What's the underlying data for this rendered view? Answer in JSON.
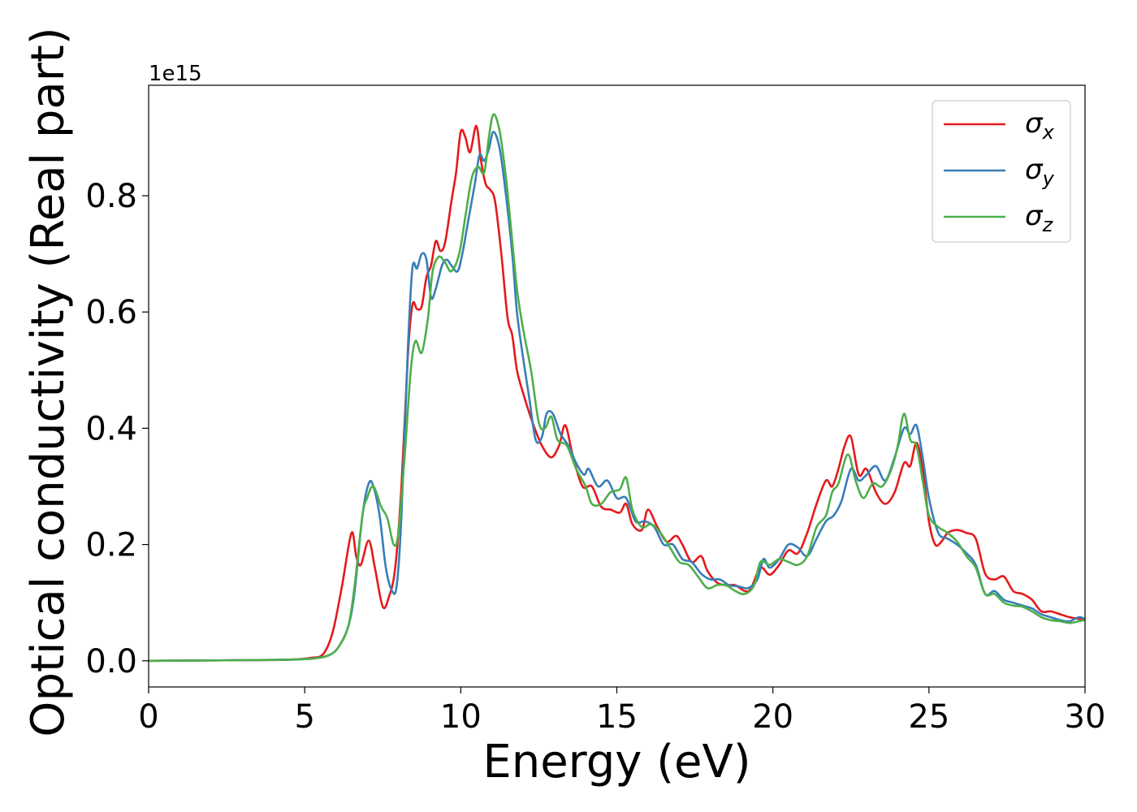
{
  "chart_data": {
    "type": "line",
    "title": "",
    "xlabel": "Energy (eV)",
    "ylabel": "Optical conductivity (Real part)",
    "y_offset_text": "1e15",
    "xlim": [
      0,
      30
    ],
    "ylim": [
      -0.045,
      0.99
    ],
    "x_ticks": [
      0,
      5,
      10,
      15,
      20,
      25,
      30
    ],
    "y_ticks": [
      0.0,
      0.2,
      0.4,
      0.6,
      0.8
    ],
    "x_tick_labels": [
      "0",
      "5",
      "10",
      "15",
      "20",
      "25",
      "30"
    ],
    "y_tick_labels": [
      "0.0",
      "0.2",
      "0.4",
      "0.6",
      "0.8"
    ],
    "grid": false,
    "legend_position": "top-right",
    "series": [
      {
        "name": "σx",
        "symbol": "σ",
        "subscript": "x",
        "color": "#e41a1c",
        "points": [
          [
            0,
            0
          ],
          [
            3,
            0.001
          ],
          [
            4.5,
            0.002
          ],
          [
            5.2,
            0.005
          ],
          [
            5.6,
            0.012
          ],
          [
            5.9,
            0.05
          ],
          [
            6.2,
            0.13
          ],
          [
            6.5,
            0.22
          ],
          [
            6.65,
            0.18
          ],
          [
            6.8,
            0.165
          ],
          [
            7.05,
            0.207
          ],
          [
            7.25,
            0.16
          ],
          [
            7.5,
            0.093
          ],
          [
            7.7,
            0.11
          ],
          [
            7.9,
            0.16
          ],
          [
            8.1,
            0.3
          ],
          [
            8.3,
            0.52
          ],
          [
            8.45,
            0.612
          ],
          [
            8.6,
            0.605
          ],
          [
            8.75,
            0.61
          ],
          [
            8.9,
            0.66
          ],
          [
            9.05,
            0.68
          ],
          [
            9.2,
            0.722
          ],
          [
            9.35,
            0.705
          ],
          [
            9.5,
            0.72
          ],
          [
            9.7,
            0.79
          ],
          [
            9.85,
            0.84
          ],
          [
            10.0,
            0.91
          ],
          [
            10.15,
            0.9
          ],
          [
            10.3,
            0.875
          ],
          [
            10.5,
            0.92
          ],
          [
            10.65,
            0.86
          ],
          [
            10.8,
            0.82
          ],
          [
            10.95,
            0.81
          ],
          [
            11.1,
            0.79
          ],
          [
            11.3,
            0.7
          ],
          [
            11.5,
            0.59
          ],
          [
            11.65,
            0.56
          ],
          [
            11.8,
            0.5
          ],
          [
            12.0,
            0.46
          ],
          [
            12.3,
            0.41
          ],
          [
            12.6,
            0.37
          ],
          [
            12.9,
            0.35
          ],
          [
            13.15,
            0.37
          ],
          [
            13.35,
            0.405
          ],
          [
            13.6,
            0.35
          ],
          [
            13.9,
            0.3
          ],
          [
            14.2,
            0.3
          ],
          [
            14.5,
            0.265
          ],
          [
            14.8,
            0.26
          ],
          [
            15.1,
            0.255
          ],
          [
            15.3,
            0.27
          ],
          [
            15.5,
            0.235
          ],
          [
            15.8,
            0.225
          ],
          [
            16.0,
            0.26
          ],
          [
            16.3,
            0.23
          ],
          [
            16.6,
            0.205
          ],
          [
            16.9,
            0.215
          ],
          [
            17.1,
            0.2
          ],
          [
            17.4,
            0.17
          ],
          [
            17.7,
            0.18
          ],
          [
            17.9,
            0.155
          ],
          [
            18.2,
            0.135
          ],
          [
            18.5,
            0.13
          ],
          [
            18.8,
            0.13
          ],
          [
            19.1,
            0.12
          ],
          [
            19.3,
            0.125
          ],
          [
            19.6,
            0.16
          ],
          [
            19.9,
            0.148
          ],
          [
            20.2,
            0.165
          ],
          [
            20.5,
            0.19
          ],
          [
            20.8,
            0.185
          ],
          [
            21.1,
            0.22
          ],
          [
            21.4,
            0.27
          ],
          [
            21.7,
            0.31
          ],
          [
            21.9,
            0.3
          ],
          [
            22.1,
            0.33
          ],
          [
            22.3,
            0.37
          ],
          [
            22.5,
            0.385
          ],
          [
            22.75,
            0.32
          ],
          [
            23.0,
            0.33
          ],
          [
            23.3,
            0.29
          ],
          [
            23.6,
            0.27
          ],
          [
            23.9,
            0.29
          ],
          [
            24.2,
            0.34
          ],
          [
            24.4,
            0.335
          ],
          [
            24.6,
            0.375
          ],
          [
            24.8,
            0.33
          ],
          [
            25.0,
            0.24
          ],
          [
            25.2,
            0.2
          ],
          [
            25.4,
            0.205
          ],
          [
            25.6,
            0.22
          ],
          [
            25.9,
            0.225
          ],
          [
            26.2,
            0.22
          ],
          [
            26.5,
            0.21
          ],
          [
            26.8,
            0.15
          ],
          [
            27.1,
            0.14
          ],
          [
            27.4,
            0.145
          ],
          [
            27.7,
            0.12
          ],
          [
            28.0,
            0.115
          ],
          [
            28.3,
            0.105
          ],
          [
            28.6,
            0.085
          ],
          [
            28.9,
            0.085
          ],
          [
            29.2,
            0.08
          ],
          [
            29.5,
            0.075
          ],
          [
            29.8,
            0.072
          ],
          [
            30,
            0.07
          ]
        ]
      },
      {
        "name": "σy",
        "symbol": "σ",
        "subscript": "y",
        "color": "#377eb8",
        "points": [
          [
            0,
            0
          ],
          [
            3,
            0.001
          ],
          [
            4.5,
            0.002
          ],
          [
            5.3,
            0.004
          ],
          [
            5.8,
            0.01
          ],
          [
            6.1,
            0.025
          ],
          [
            6.4,
            0.06
          ],
          [
            6.6,
            0.12
          ],
          [
            6.85,
            0.25
          ],
          [
            7.05,
            0.305
          ],
          [
            7.2,
            0.3
          ],
          [
            7.4,
            0.25
          ],
          [
            7.6,
            0.16
          ],
          [
            7.8,
            0.12
          ],
          [
            7.95,
            0.13
          ],
          [
            8.1,
            0.25
          ],
          [
            8.3,
            0.53
          ],
          [
            8.45,
            0.675
          ],
          [
            8.6,
            0.675
          ],
          [
            8.75,
            0.7
          ],
          [
            8.9,
            0.69
          ],
          [
            9.05,
            0.625
          ],
          [
            9.2,
            0.64
          ],
          [
            9.4,
            0.68
          ],
          [
            9.55,
            0.69
          ],
          [
            9.7,
            0.68
          ],
          [
            9.9,
            0.67
          ],
          [
            10.05,
            0.7
          ],
          [
            10.25,
            0.76
          ],
          [
            10.45,
            0.82
          ],
          [
            10.6,
            0.87
          ],
          [
            10.75,
            0.86
          ],
          [
            10.9,
            0.88
          ],
          [
            11.05,
            0.91
          ],
          [
            11.25,
            0.88
          ],
          [
            11.45,
            0.8
          ],
          [
            11.65,
            0.7
          ],
          [
            11.8,
            0.6
          ],
          [
            12.0,
            0.52
          ],
          [
            12.2,
            0.45
          ],
          [
            12.4,
            0.38
          ],
          [
            12.6,
            0.385
          ],
          [
            12.75,
            0.425
          ],
          [
            12.95,
            0.425
          ],
          [
            13.2,
            0.39
          ],
          [
            13.45,
            0.37
          ],
          [
            13.7,
            0.34
          ],
          [
            13.95,
            0.32
          ],
          [
            14.1,
            0.33
          ],
          [
            14.4,
            0.3
          ],
          [
            14.7,
            0.31
          ],
          [
            15.0,
            0.28
          ],
          [
            15.3,
            0.28
          ],
          [
            15.6,
            0.24
          ],
          [
            15.9,
            0.24
          ],
          [
            16.2,
            0.23
          ],
          [
            16.5,
            0.2
          ],
          [
            16.8,
            0.2
          ],
          [
            17.1,
            0.175
          ],
          [
            17.4,
            0.17
          ],
          [
            17.7,
            0.15
          ],
          [
            18.0,
            0.14
          ],
          [
            18.3,
            0.14
          ],
          [
            18.6,
            0.13
          ],
          [
            18.9,
            0.128
          ],
          [
            19.2,
            0.125
          ],
          [
            19.5,
            0.14
          ],
          [
            19.7,
            0.175
          ],
          [
            19.9,
            0.16
          ],
          [
            20.2,
            0.175
          ],
          [
            20.5,
            0.2
          ],
          [
            20.8,
            0.195
          ],
          [
            21.1,
            0.18
          ],
          [
            21.4,
            0.21
          ],
          [
            21.7,
            0.24
          ],
          [
            21.95,
            0.25
          ],
          [
            22.2,
            0.275
          ],
          [
            22.5,
            0.33
          ],
          [
            22.75,
            0.31
          ],
          [
            23.0,
            0.32
          ],
          [
            23.3,
            0.335
          ],
          [
            23.6,
            0.31
          ],
          [
            23.9,
            0.35
          ],
          [
            24.2,
            0.4
          ],
          [
            24.4,
            0.39
          ],
          [
            24.6,
            0.405
          ],
          [
            24.8,
            0.35
          ],
          [
            25.0,
            0.28
          ],
          [
            25.3,
            0.22
          ],
          [
            25.6,
            0.21
          ],
          [
            25.9,
            0.2
          ],
          [
            26.2,
            0.185
          ],
          [
            26.5,
            0.165
          ],
          [
            26.8,
            0.115
          ],
          [
            27.1,
            0.12
          ],
          [
            27.4,
            0.105
          ],
          [
            27.7,
            0.1
          ],
          [
            28.0,
            0.095
          ],
          [
            28.3,
            0.09
          ],
          [
            28.6,
            0.08
          ],
          [
            28.9,
            0.075
          ],
          [
            29.2,
            0.07
          ],
          [
            29.5,
            0.068
          ],
          [
            29.8,
            0.075
          ],
          [
            30,
            0.072
          ]
        ]
      },
      {
        "name": "σz",
        "symbol": "σ",
        "subscript": "z",
        "color": "#4daf4a",
        "points": [
          [
            0,
            0
          ],
          [
            3,
            0.001
          ],
          [
            4.5,
            0.002
          ],
          [
            5.3,
            0.004
          ],
          [
            5.8,
            0.01
          ],
          [
            6.1,
            0.025
          ],
          [
            6.4,
            0.06
          ],
          [
            6.6,
            0.13
          ],
          [
            6.85,
            0.25
          ],
          [
            7.0,
            0.28
          ],
          [
            7.2,
            0.3
          ],
          [
            7.45,
            0.265
          ],
          [
            7.65,
            0.245
          ],
          [
            7.85,
            0.2
          ],
          [
            8.0,
            0.22
          ],
          [
            8.2,
            0.35
          ],
          [
            8.4,
            0.5
          ],
          [
            8.55,
            0.55
          ],
          [
            8.75,
            0.53
          ],
          [
            8.95,
            0.59
          ],
          [
            9.1,
            0.67
          ],
          [
            9.3,
            0.695
          ],
          [
            9.5,
            0.685
          ],
          [
            9.7,
            0.67
          ],
          [
            9.95,
            0.7
          ],
          [
            10.15,
            0.765
          ],
          [
            10.35,
            0.83
          ],
          [
            10.55,
            0.85
          ],
          [
            10.75,
            0.84
          ],
          [
            10.9,
            0.9
          ],
          [
            11.05,
            0.94
          ],
          [
            11.25,
            0.91
          ],
          [
            11.45,
            0.83
          ],
          [
            11.6,
            0.75
          ],
          [
            11.8,
            0.64
          ],
          [
            12.0,
            0.57
          ],
          [
            12.25,
            0.5
          ],
          [
            12.5,
            0.41
          ],
          [
            12.7,
            0.4
          ],
          [
            12.9,
            0.42
          ],
          [
            13.1,
            0.38
          ],
          [
            13.4,
            0.37
          ],
          [
            13.7,
            0.33
          ],
          [
            14.0,
            0.3
          ],
          [
            14.2,
            0.27
          ],
          [
            14.5,
            0.27
          ],
          [
            14.8,
            0.29
          ],
          [
            15.1,
            0.295
          ],
          [
            15.3,
            0.315
          ],
          [
            15.5,
            0.26
          ],
          [
            15.8,
            0.23
          ],
          [
            16.1,
            0.235
          ],
          [
            16.4,
            0.22
          ],
          [
            16.7,
            0.195
          ],
          [
            17.0,
            0.17
          ],
          [
            17.3,
            0.165
          ],
          [
            17.6,
            0.145
          ],
          [
            17.9,
            0.125
          ],
          [
            18.2,
            0.13
          ],
          [
            18.5,
            0.13
          ],
          [
            18.8,
            0.12
          ],
          [
            19.1,
            0.115
          ],
          [
            19.4,
            0.13
          ],
          [
            19.6,
            0.17
          ],
          [
            19.9,
            0.165
          ],
          [
            20.2,
            0.175
          ],
          [
            20.5,
            0.17
          ],
          [
            20.8,
            0.165
          ],
          [
            21.1,
            0.18
          ],
          [
            21.4,
            0.23
          ],
          [
            21.7,
            0.25
          ],
          [
            21.9,
            0.29
          ],
          [
            22.1,
            0.305
          ],
          [
            22.4,
            0.355
          ],
          [
            22.65,
            0.31
          ],
          [
            22.9,
            0.28
          ],
          [
            23.2,
            0.305
          ],
          [
            23.5,
            0.3
          ],
          [
            23.8,
            0.33
          ],
          [
            24.0,
            0.37
          ],
          [
            24.2,
            0.425
          ],
          [
            24.4,
            0.38
          ],
          [
            24.6,
            0.37
          ],
          [
            24.8,
            0.31
          ],
          [
            25.0,
            0.25
          ],
          [
            25.3,
            0.23
          ],
          [
            25.6,
            0.22
          ],
          [
            25.9,
            0.205
          ],
          [
            26.2,
            0.18
          ],
          [
            26.5,
            0.16
          ],
          [
            26.8,
            0.115
          ],
          [
            27.1,
            0.115
          ],
          [
            27.4,
            0.1
          ],
          [
            27.7,
            0.095
          ],
          [
            28.0,
            0.093
          ],
          [
            28.3,
            0.085
          ],
          [
            28.6,
            0.075
          ],
          [
            28.9,
            0.07
          ],
          [
            29.2,
            0.068
          ],
          [
            29.5,
            0.065
          ],
          [
            29.8,
            0.068
          ],
          [
            30,
            0.07
          ]
        ]
      }
    ]
  }
}
